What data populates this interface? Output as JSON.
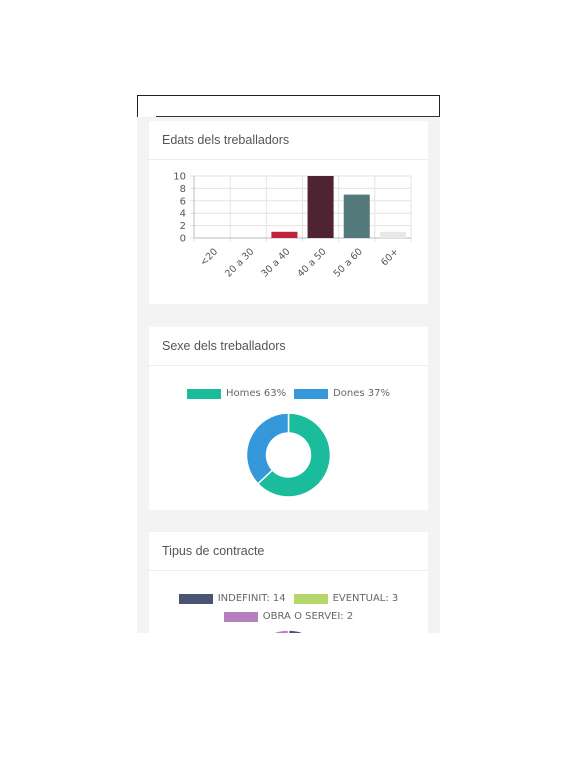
{
  "cards": {
    "edats": {
      "title": "Edats dels treballadors"
    },
    "sexe": {
      "title": "Sexe dels treballadors"
    },
    "tipus": {
      "title": "Tipus de contracte"
    }
  },
  "chart_data": [
    {
      "type": "bar",
      "categories": [
        "<20",
        "20 a 30",
        "30 a 40",
        "40 a 50",
        "50 a 60",
        "60+"
      ],
      "values": [
        0,
        0,
        1,
        10,
        7,
        1
      ],
      "colors": [
        "#dddddd",
        "#dddddd",
        "#c0223a",
        "#4f2332",
        "#53797b",
        "#e8e8e8"
      ],
      "ylim": [
        0,
        10
      ],
      "yticks": [
        0,
        2,
        4,
        6,
        8,
        10
      ],
      "grid": true,
      "legend": "none"
    },
    {
      "type": "pie",
      "variant": "doughnut",
      "labels": [
        "Homes 63%",
        "Dones 37%"
      ],
      "values": [
        63,
        37
      ],
      "colors": [
        "#1bbc9b",
        "#3498db"
      ],
      "legend": "top"
    },
    {
      "type": "pie",
      "labels": [
        "INDEFINIT: 14",
        "EVENTUAL: 3",
        "OBRA O SERVEI: 2"
      ],
      "values": [
        14,
        3,
        2
      ],
      "colors": [
        "#4a5575",
        "#b4d66a",
        "#b67fbf"
      ],
      "legend": "top"
    }
  ]
}
